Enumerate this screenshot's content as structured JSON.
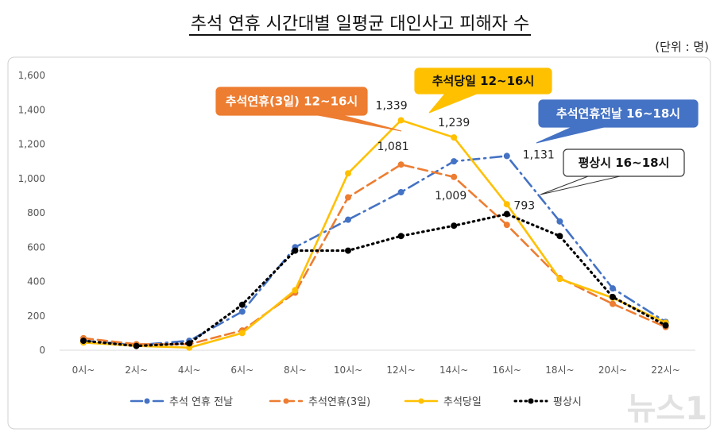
{
  "title": "추석 연휴 시간대별 일평균 대인사고 피해자 수",
  "unit": "(단위 : 명)",
  "chart_data": {
    "type": "line",
    "title": "추석 연휴 시간대별 일평균 대인사고 피해자 수",
    "ylim": [
      0,
      1600
    ],
    "yticks": [
      0,
      200,
      400,
      600,
      800,
      1000,
      1200,
      1400,
      1600
    ],
    "ytick_labels": [
      "0",
      "200",
      "400",
      "600",
      "800",
      "1,000",
      "1,200",
      "1,400",
      "1,600"
    ],
    "categories": [
      "0시~",
      "2시~",
      "4시~",
      "6시~",
      "8시~",
      "10시~",
      "12시~",
      "14시~",
      "16시~",
      "18시~",
      "20시~",
      "22시~"
    ],
    "grid": false,
    "legend": "bottom",
    "series": [
      {
        "name": "추석 연휴 전날",
        "color": "#4472C4",
        "style": "dash-dot",
        "values": [
          55,
          30,
          55,
          225,
          600,
          760,
          920,
          1100,
          1131,
          750,
          360,
          165
        ]
      },
      {
        "name": "추석연휴(3일)",
        "color": "#ED7D31",
        "style": "dash",
        "values": [
          70,
          35,
          35,
          115,
          335,
          890,
          1081,
          1009,
          730,
          420,
          270,
          135
        ]
      },
      {
        "name": "추석당일",
        "color": "#FFC000",
        "style": "solid",
        "values": [
          45,
          25,
          15,
          100,
          350,
          1030,
          1339,
          1239,
          850,
          415,
          305,
          160
        ]
      },
      {
        "name": "평상시",
        "color": "#000000",
        "style": "dot",
        "values": [
          55,
          25,
          40,
          265,
          580,
          580,
          665,
          725,
          793,
          665,
          310,
          145
        ]
      }
    ],
    "data_labels": [
      {
        "series": 2,
        "index": 6,
        "text": "1,339"
      },
      {
        "series": 2,
        "index": 7,
        "text": "1,239"
      },
      {
        "series": 1,
        "index": 6,
        "text": "1,081"
      },
      {
        "series": 1,
        "index": 7,
        "text": "1,009"
      },
      {
        "series": 0,
        "index": 8,
        "text": "1,131"
      },
      {
        "series": 3,
        "index": 8,
        "text": "793"
      }
    ],
    "annotations": [
      {
        "text": "추석연휴(3일) 12~16시",
        "bg": "#ED7D31",
        "fg": "#ffffff"
      },
      {
        "text": "추석당일 12~16시",
        "bg": "#FFC000",
        "fg": "#111111"
      },
      {
        "text": "추석연휴전날 16~18시",
        "bg": "#4472C4",
        "fg": "#ffffff"
      },
      {
        "text": "평상시 16~18시",
        "bg": "#ffffff",
        "fg": "#111111"
      }
    ]
  },
  "watermark": "뉴스1"
}
